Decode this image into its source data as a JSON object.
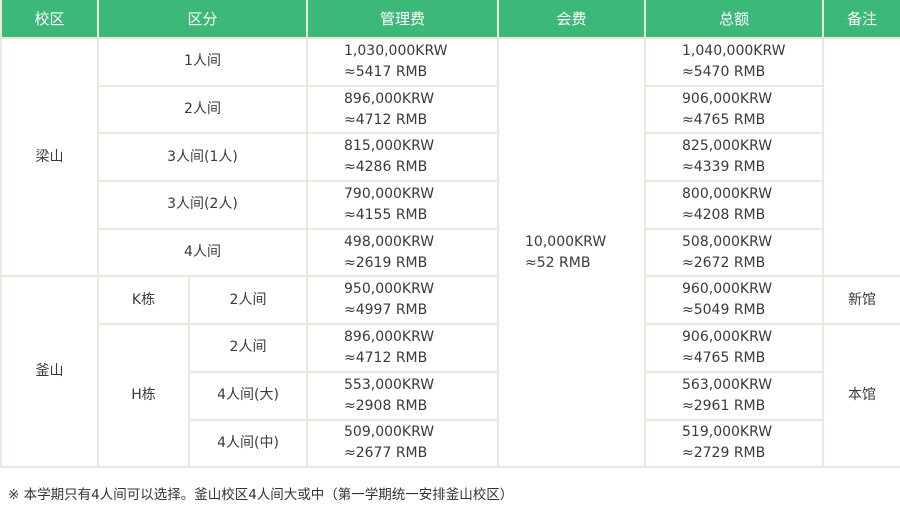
{
  "header": {
    "campus": "校区",
    "category": "区分",
    "management_fee": "管理费",
    "membership_fee": "会费",
    "total": "总额",
    "remark": "备注"
  },
  "yangsan": {
    "campus": "梁山",
    "rows": [
      {
        "type": "1人间",
        "mgmt_krw": "1,030,000KRW",
        "mgmt_rmb": "≈5417 RMB",
        "total_krw": "1,040,000KRW",
        "total_rmb": "≈5470 RMB"
      },
      {
        "type": "2人间",
        "mgmt_krw": "896,000KRW",
        "mgmt_rmb": "≈4712 RMB",
        "total_krw": "906,000KRW",
        "total_rmb": "≈4765 RMB"
      },
      {
        "type": "3人间(1人)",
        "mgmt_krw": "815,000KRW",
        "mgmt_rmb": "≈4286 RMB",
        "total_krw": "825,000KRW",
        "total_rmb": "≈4339 RMB"
      },
      {
        "type": "3人间(2人)",
        "mgmt_krw": "790,000KRW",
        "mgmt_rmb": "≈4155 RMB",
        "total_krw": "800,000KRW",
        "total_rmb": "≈4208 RMB"
      },
      {
        "type": "4人间",
        "mgmt_krw": "498,000KRW",
        "mgmt_rmb": "≈2619 RMB",
        "total_krw": "508,000KRW",
        "total_rmb": "≈2672 RMB"
      }
    ]
  },
  "fee": {
    "krw": "10,000KRW",
    "rmb": "≈52 RMB"
  },
  "busan": {
    "campus": "釜山",
    "k_building": "K栋",
    "k_remark": "新馆",
    "h_building": "H栋",
    "h_remark": "本馆",
    "rows": [
      {
        "type": "2人间",
        "mgmt_krw": "950,000KRW",
        "mgmt_rmb": "≈4997 RMB",
        "total_krw": "960,000KRW",
        "total_rmb": "≈5049 RMB"
      },
      {
        "type": "2人间",
        "mgmt_krw": "896,000KRW",
        "mgmt_rmb": "≈4712 RMB",
        "total_krw": "906,000KRW",
        "total_rmb": "≈4765 RMB"
      },
      {
        "type": "4人间(大)",
        "mgmt_krw": "553,000KRW",
        "mgmt_rmb": "≈2908 RMB",
        "total_krw": "563,000KRW",
        "total_rmb": "≈2961 RMB"
      },
      {
        "type": "4人间(中)",
        "mgmt_krw": "509,000KRW",
        "mgmt_rmb": "≈2677 RMB",
        "total_krw": "519,000KRW",
        "total_rmb": "≈2729 RMB"
      }
    ]
  },
  "note": "※ 本学期只有4人间可以选择。釜山校区4人间大或中（第一学期统一安排釜山校区）"
}
